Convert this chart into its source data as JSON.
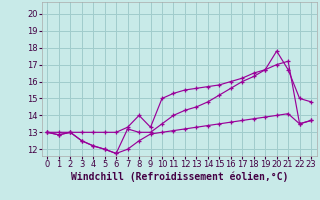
{
  "background_color": "#c8eae8",
  "grid_color": "#a0cccc",
  "line_color": "#990099",
  "xlabel": "Windchill (Refroidissement éolien,°C)",
  "ylim": [
    11.6,
    20.7
  ],
  "xlim": [
    -0.5,
    23.5
  ],
  "ytick_vals": [
    12,
    13,
    14,
    15,
    16,
    17,
    18,
    19,
    20
  ],
  "xtick_vals": [
    0,
    1,
    2,
    3,
    4,
    5,
    6,
    7,
    8,
    9,
    10,
    11,
    12,
    13,
    14,
    15,
    16,
    17,
    18,
    19,
    20,
    21,
    22,
    23
  ],
  "line1_x": [
    0,
    1,
    2,
    3,
    4,
    5,
    6,
    7,
    8,
    9,
    10,
    11,
    12,
    13,
    14,
    15,
    16,
    17,
    18,
    19,
    20,
    21,
    22,
    23
  ],
  "line1_y": [
    13.0,
    12.85,
    13.0,
    12.5,
    12.2,
    12.0,
    11.75,
    12.0,
    12.5,
    12.9,
    13.0,
    13.1,
    13.2,
    13.3,
    13.4,
    13.5,
    13.6,
    13.7,
    13.8,
    13.9,
    14.0,
    14.1,
    13.5,
    13.7
  ],
  "line2_x": [
    0,
    1,
    2,
    3,
    4,
    5,
    6,
    7,
    8,
    9,
    10,
    11,
    12,
    13,
    14,
    15,
    16,
    17,
    18,
    19,
    20,
    21,
    22,
    23
  ],
  "line2_y": [
    13.0,
    13.0,
    13.0,
    13.0,
    13.0,
    13.0,
    13.0,
    13.3,
    14.0,
    13.3,
    15.0,
    15.3,
    15.5,
    15.6,
    15.7,
    15.8,
    16.0,
    16.2,
    16.5,
    16.7,
    17.8,
    16.7,
    15.0,
    14.8
  ],
  "line3_x": [
    0,
    1,
    2,
    3,
    4,
    5,
    6,
    7,
    8,
    9,
    10,
    11,
    12,
    13,
    14,
    15,
    16,
    17,
    18,
    19,
    20,
    21,
    22,
    23
  ],
  "line3_y": [
    13.0,
    12.85,
    13.0,
    12.5,
    12.2,
    12.0,
    11.75,
    13.2,
    13.0,
    13.0,
    13.5,
    14.0,
    14.3,
    14.5,
    14.8,
    15.2,
    15.6,
    16.0,
    16.3,
    16.7,
    17.0,
    17.2,
    13.5,
    13.7
  ],
  "xlabel_fontsize": 7,
  "tick_fontsize": 6,
  "xlabel_color": "#440044",
  "tick_color": "#440044"
}
